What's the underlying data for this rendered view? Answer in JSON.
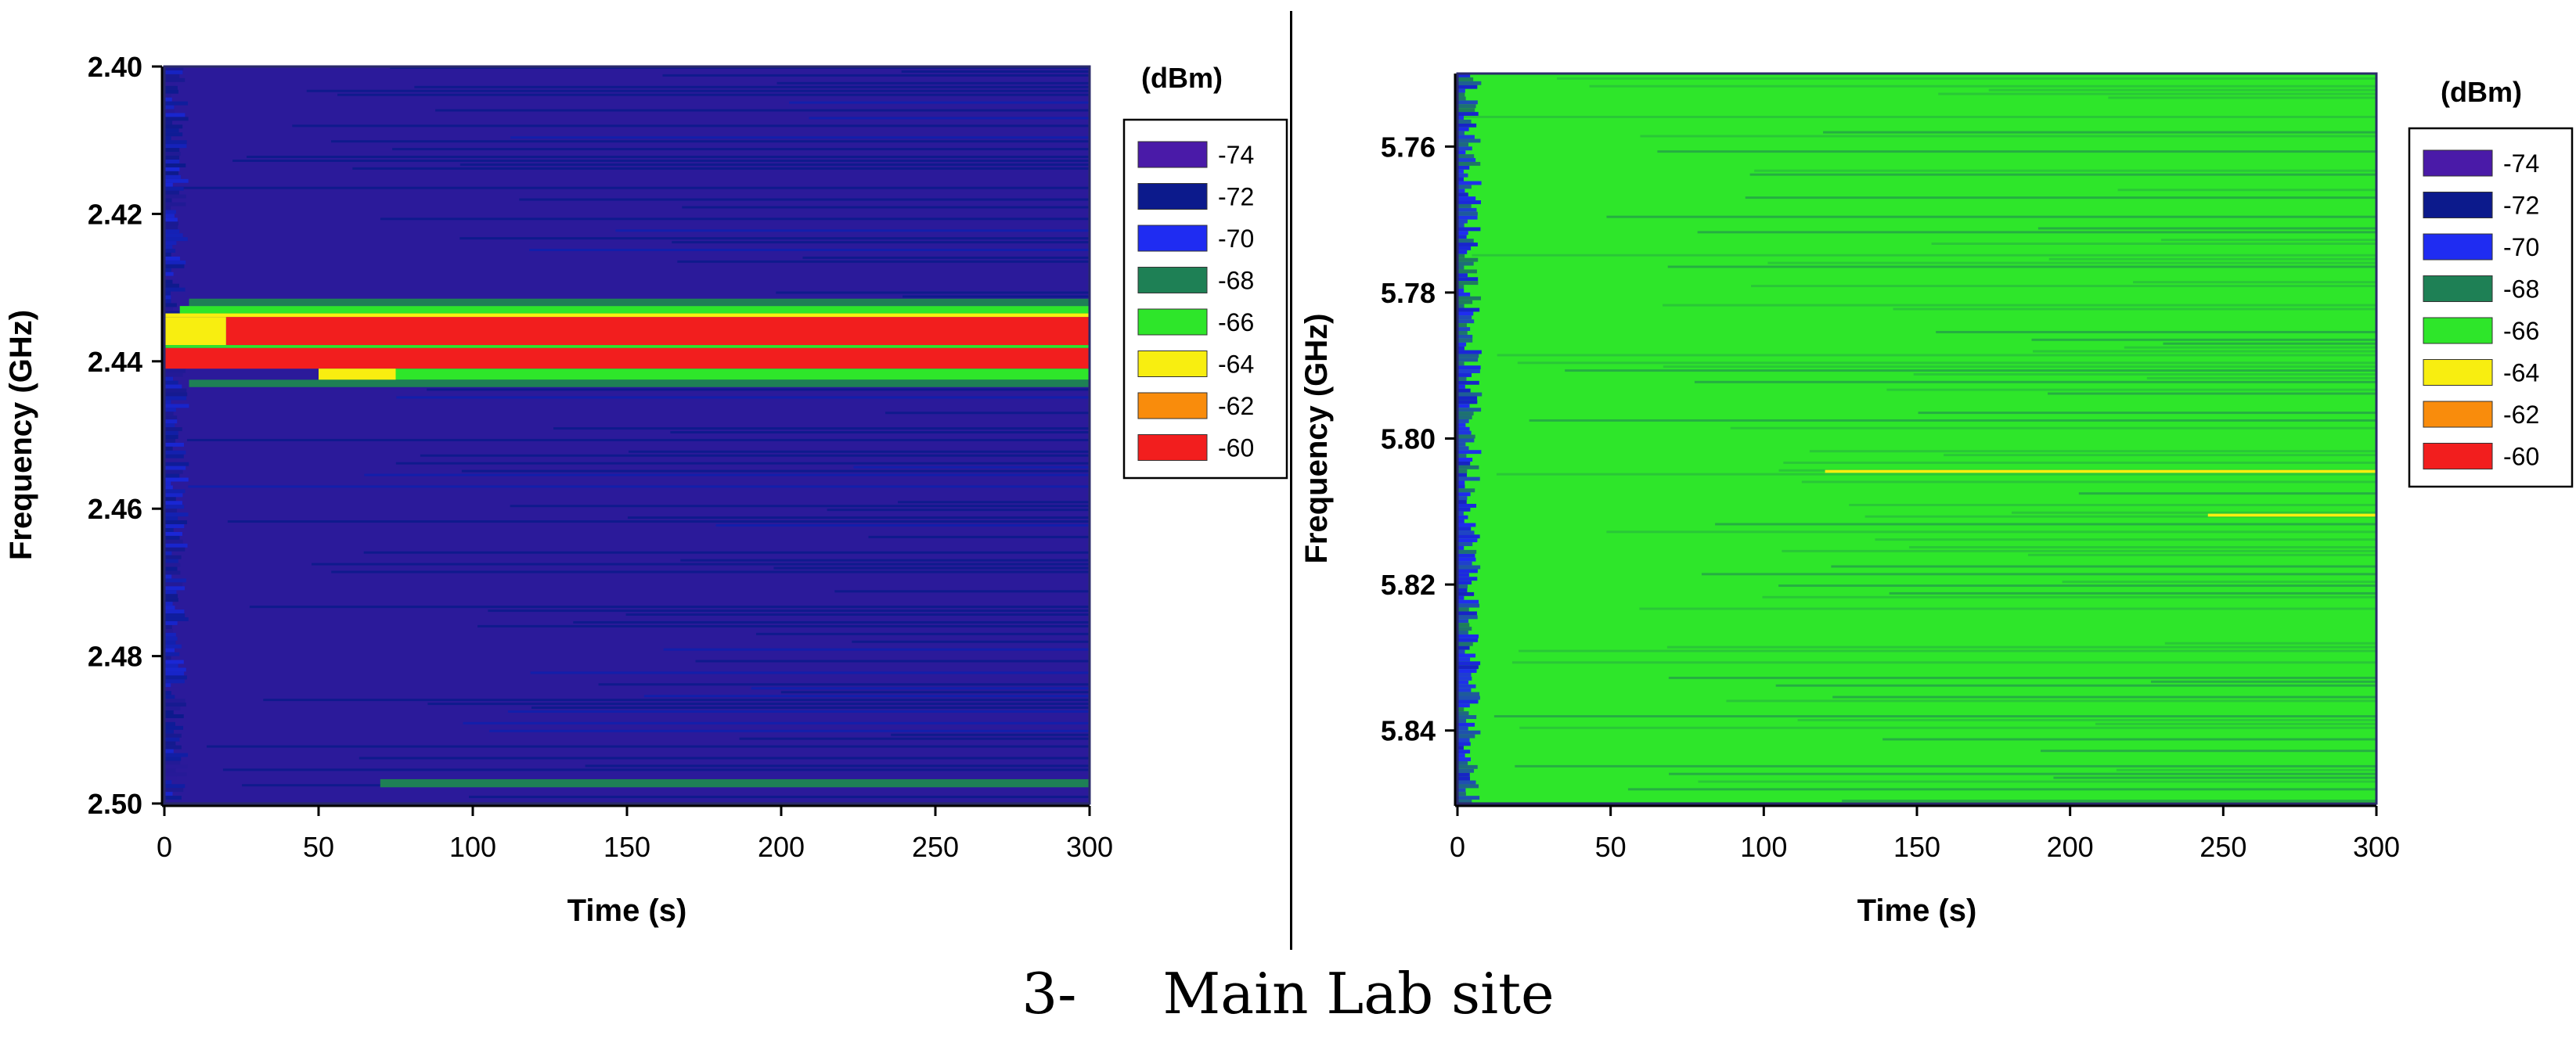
{
  "caption": {
    "number": "3-",
    "text": "Main Lab site"
  },
  "colors": {
    "-74": "#4a1aa8",
    "-72": "#0c1a8c",
    "-70": "#1f2cf2",
    "-68": "#1e8055",
    "-66": "#2ee62a",
    "-64": "#f8ee10",
    "-62": "#f98c0c",
    "-60": "#f21e1e"
  },
  "chart_data": [
    {
      "type": "heatmap",
      "title": "",
      "xlabel": "Time (s)",
      "ylabel": "Frequency (GHz)",
      "xlim": [
        0,
        300
      ],
      "ylim": [
        2.4,
        2.5
      ],
      "x_ticks": [
        "0",
        "50",
        "100",
        "150",
        "200",
        "250",
        "300"
      ],
      "y_ticks": [
        "2.40",
        "2.42",
        "2.44",
        "2.46",
        "2.48",
        "2.50"
      ],
      "colorbar_title": "(dBm)",
      "legend": [
        "-74",
        "-72",
        "-70",
        "-68",
        "-66",
        "-64",
        "-62",
        "-60"
      ],
      "background_level": -73,
      "bands": [
        {
          "f_start": 2.4315,
          "f_end": 2.4325,
          "t_start": 8,
          "t_end": 300,
          "level": -68
        },
        {
          "f_start": 2.4325,
          "f_end": 2.4335,
          "t_start": 5,
          "t_end": 300,
          "level": -66
        },
        {
          "f_start": 2.4335,
          "f_end": 2.434,
          "t_start": 0,
          "t_end": 300,
          "level": -64
        },
        {
          "f_start": 2.434,
          "f_end": 2.4378,
          "t_start": 20,
          "t_end": 300,
          "level": -60
        },
        {
          "f_start": 2.434,
          "f_end": 2.4378,
          "t_start": 0,
          "t_end": 20,
          "level": -64
        },
        {
          "f_start": 2.4378,
          "f_end": 2.4382,
          "t_start": 0,
          "t_end": 300,
          "level": -66
        },
        {
          "f_start": 2.4382,
          "f_end": 2.441,
          "t_start": 0,
          "t_end": 300,
          "level": -60
        },
        {
          "f_start": 2.441,
          "f_end": 2.4425,
          "t_start": 50,
          "t_end": 300,
          "level": -66
        },
        {
          "f_start": 2.441,
          "f_end": 2.4425,
          "t_start": 50,
          "t_end": 75,
          "level": -64
        },
        {
          "f_start": 2.4425,
          "f_end": 2.4435,
          "t_start": 8,
          "t_end": 300,
          "level": -68
        },
        {
          "f_start": 2.4967,
          "f_end": 2.4978,
          "t_start": 70,
          "t_end": 300,
          "level": -68
        }
      ]
    },
    {
      "type": "heatmap",
      "title": "",
      "xlabel": "Time (s)",
      "ylabel": "Frequency (GHz)",
      "xlim": [
        0,
        300
      ],
      "ylim": [
        5.75,
        5.85
      ],
      "x_ticks": [
        "0",
        "50",
        "100",
        "150",
        "200",
        "250",
        "300"
      ],
      "y_ticks": [
        "5.76",
        "5.78",
        "5.80",
        "5.82",
        "5.84"
      ],
      "colorbar_title": "(dBm)",
      "legend": [
        "-74",
        "-72",
        "-70",
        "-68",
        "-66",
        "-64",
        "-62",
        "-60"
      ],
      "background_level": -66,
      "bands": [
        {
          "f_start": 5.8043,
          "f_end": 5.8047,
          "t_start": 120,
          "t_end": 300,
          "level": -64
        },
        {
          "f_start": 5.8103,
          "f_end": 5.8107,
          "t_start": 245,
          "t_end": 300,
          "level": -64
        }
      ]
    }
  ]
}
